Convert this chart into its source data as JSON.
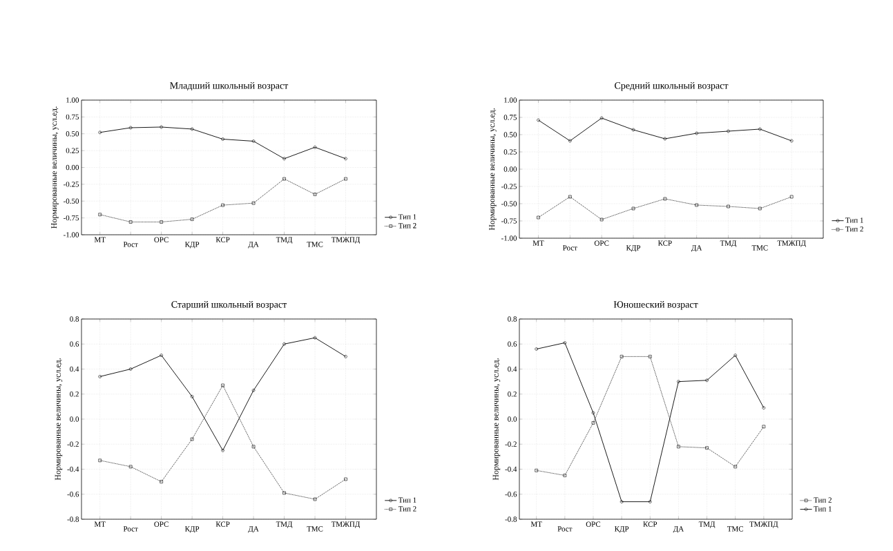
{
  "chart_data": [
    {
      "type": "line",
      "title": "Младший школьный возраст",
      "ylabel": "Нормированные величины, усл.ед.",
      "categories": [
        "МТ",
        "Рост",
        "ОРС",
        "КДР",
        "КСР",
        "ДА",
        "ТМД",
        "ТМС",
        "ТМЖПД"
      ],
      "series": [
        {
          "name": "Тип 1",
          "color": "#000000",
          "marker": "circle",
          "line_style": "solid",
          "values": [
            0.52,
            0.59,
            0.6,
            0.57,
            0.42,
            0.39,
            0.13,
            0.3,
            0.13
          ]
        },
        {
          "name": "Тип 2",
          "color": "#000000",
          "marker": "square",
          "line_style": "dotted",
          "values": [
            -0.7,
            -0.81,
            -0.81,
            -0.77,
            -0.56,
            -0.53,
            -0.17,
            -0.4,
            -0.17
          ]
        }
      ],
      "ylim": [
        -1,
        1
      ],
      "yticks": [
        {
          "value": -1,
          "label": "-1.00"
        },
        {
          "value": -0.75,
          "label": "-0.75"
        },
        {
          "value": -0.5,
          "label": "-0.50"
        },
        {
          "value": -0.25,
          "label": "-0.25"
        },
        {
          "value": 0,
          "label": "0.00"
        },
        {
          "value": 0.25,
          "label": "0.25"
        },
        {
          "value": 0.5,
          "label": "0.50"
        },
        {
          "value": 0.75,
          "label": "0.75"
        },
        {
          "value": 1,
          "label": "1.00"
        }
      ],
      "grid": true,
      "legend": "right"
    },
    {
      "type": "line",
      "title": "Средний школьный возраст",
      "ylabel": "Нормированные величины, усл.ед.",
      "categories": [
        "МТ",
        "Рост",
        "ОРС",
        "КДР",
        "КСР",
        "ДА",
        "ТМД",
        "ТМС",
        "ТМЖПД"
      ],
      "series": [
        {
          "name": "Тип 1",
          "color": "#000000",
          "marker": "circle",
          "line_style": "solid",
          "values": [
            0.71,
            0.41,
            0.74,
            0.57,
            0.44,
            0.52,
            0.55,
            0.58,
            0.41
          ]
        },
        {
          "name": "Тип 2",
          "color": "#000000",
          "marker": "square",
          "line_style": "dotted",
          "values": [
            -0.7,
            -0.4,
            -0.73,
            -0.57,
            -0.43,
            -0.52,
            -0.54,
            -0.57,
            -0.4
          ]
        }
      ],
      "ylim": [
        -1,
        1
      ],
      "yticks": [
        {
          "value": -1,
          "label": "-1.00"
        },
        {
          "value": -0.75,
          "label": "-0.75"
        },
        {
          "value": -0.5,
          "label": "-0.50"
        },
        {
          "value": -0.25,
          "label": "-0.25"
        },
        {
          "value": 0,
          "label": "0.00"
        },
        {
          "value": 0.25,
          "label": "0.25"
        },
        {
          "value": 0.5,
          "label": "0.50"
        },
        {
          "value": 0.75,
          "label": "0.75"
        },
        {
          "value": 1,
          "label": "1.00"
        }
      ],
      "grid": true,
      "legend": "right"
    },
    {
      "type": "line",
      "title": "Старший школьный возраст",
      "ylabel": "Нормированные величины, усл.ед.",
      "categories": [
        "МТ",
        "Рост",
        "ОРС",
        "КДР",
        "КСР",
        "ДА",
        "ТМД",
        "ТМС",
        "ТМЖПД"
      ],
      "series": [
        {
          "name": "Тип 1",
          "color": "#000000",
          "marker": "circle",
          "line_style": "solid",
          "values": [
            0.34,
            0.4,
            0.51,
            0.18,
            -0.25,
            0.23,
            0.6,
            0.65,
            0.5
          ]
        },
        {
          "name": "Тип 2",
          "color": "#000000",
          "marker": "square",
          "line_style": "dotted",
          "values": [
            -0.33,
            -0.38,
            -0.5,
            -0.16,
            0.27,
            -0.22,
            -0.59,
            -0.64,
            -0.48
          ]
        }
      ],
      "ylim": [
        -0.8,
        0.8
      ],
      "yticks": [
        {
          "value": -0.8,
          "label": "-0.8"
        },
        {
          "value": -0.6,
          "label": "-0.6"
        },
        {
          "value": -0.4,
          "label": "-0.4"
        },
        {
          "value": -0.2,
          "label": "-0.2"
        },
        {
          "value": 0,
          "label": "0.0"
        },
        {
          "value": 0.2,
          "label": "0.2"
        },
        {
          "value": 0.4,
          "label": "0.4"
        },
        {
          "value": 0.6,
          "label": "0.6"
        },
        {
          "value": 0.8,
          "label": "0.8"
        }
      ],
      "grid": true,
      "legend": "right"
    },
    {
      "type": "line",
      "title": "Юношеский возраст",
      "ylabel": "Нормированные величины, усл.ед.",
      "categories": [
        "МТ",
        "Рост",
        "ОРС",
        "КДР",
        "КСР",
        "ДА",
        "ТМД",
        "ТМС",
        "ТМЖПД"
      ],
      "series": [
        {
          "name": "Тип 2",
          "color": "#000000",
          "marker": "square",
          "line_style": "dotted",
          "values": [
            -0.41,
            -0.45,
            -0.03,
            0.5,
            0.5,
            -0.22,
            -0.23,
            -0.38,
            -0.06
          ]
        },
        {
          "name": "Тип 1",
          "color": "#000000",
          "marker": "circle",
          "line_style": "solid",
          "values": [
            0.56,
            0.61,
            0.05,
            -0.66,
            -0.66,
            0.3,
            0.31,
            0.51,
            0.09
          ]
        }
      ],
      "ylim": [
        -0.8,
        0.8
      ],
      "yticks": [
        {
          "value": -0.8,
          "label": "-0.8"
        },
        {
          "value": -0.6,
          "label": "-0.6"
        },
        {
          "value": -0.4,
          "label": "-0.4"
        },
        {
          "value": -0.2,
          "label": "-0.2"
        },
        {
          "value": 0,
          "label": "0.0"
        },
        {
          "value": 0.2,
          "label": "0.2"
        },
        {
          "value": 0.4,
          "label": "0.4"
        },
        {
          "value": 0.6,
          "label": "0.6"
        },
        {
          "value": 0.8,
          "label": "0.8"
        }
      ],
      "grid": true,
      "legend": "right"
    }
  ]
}
